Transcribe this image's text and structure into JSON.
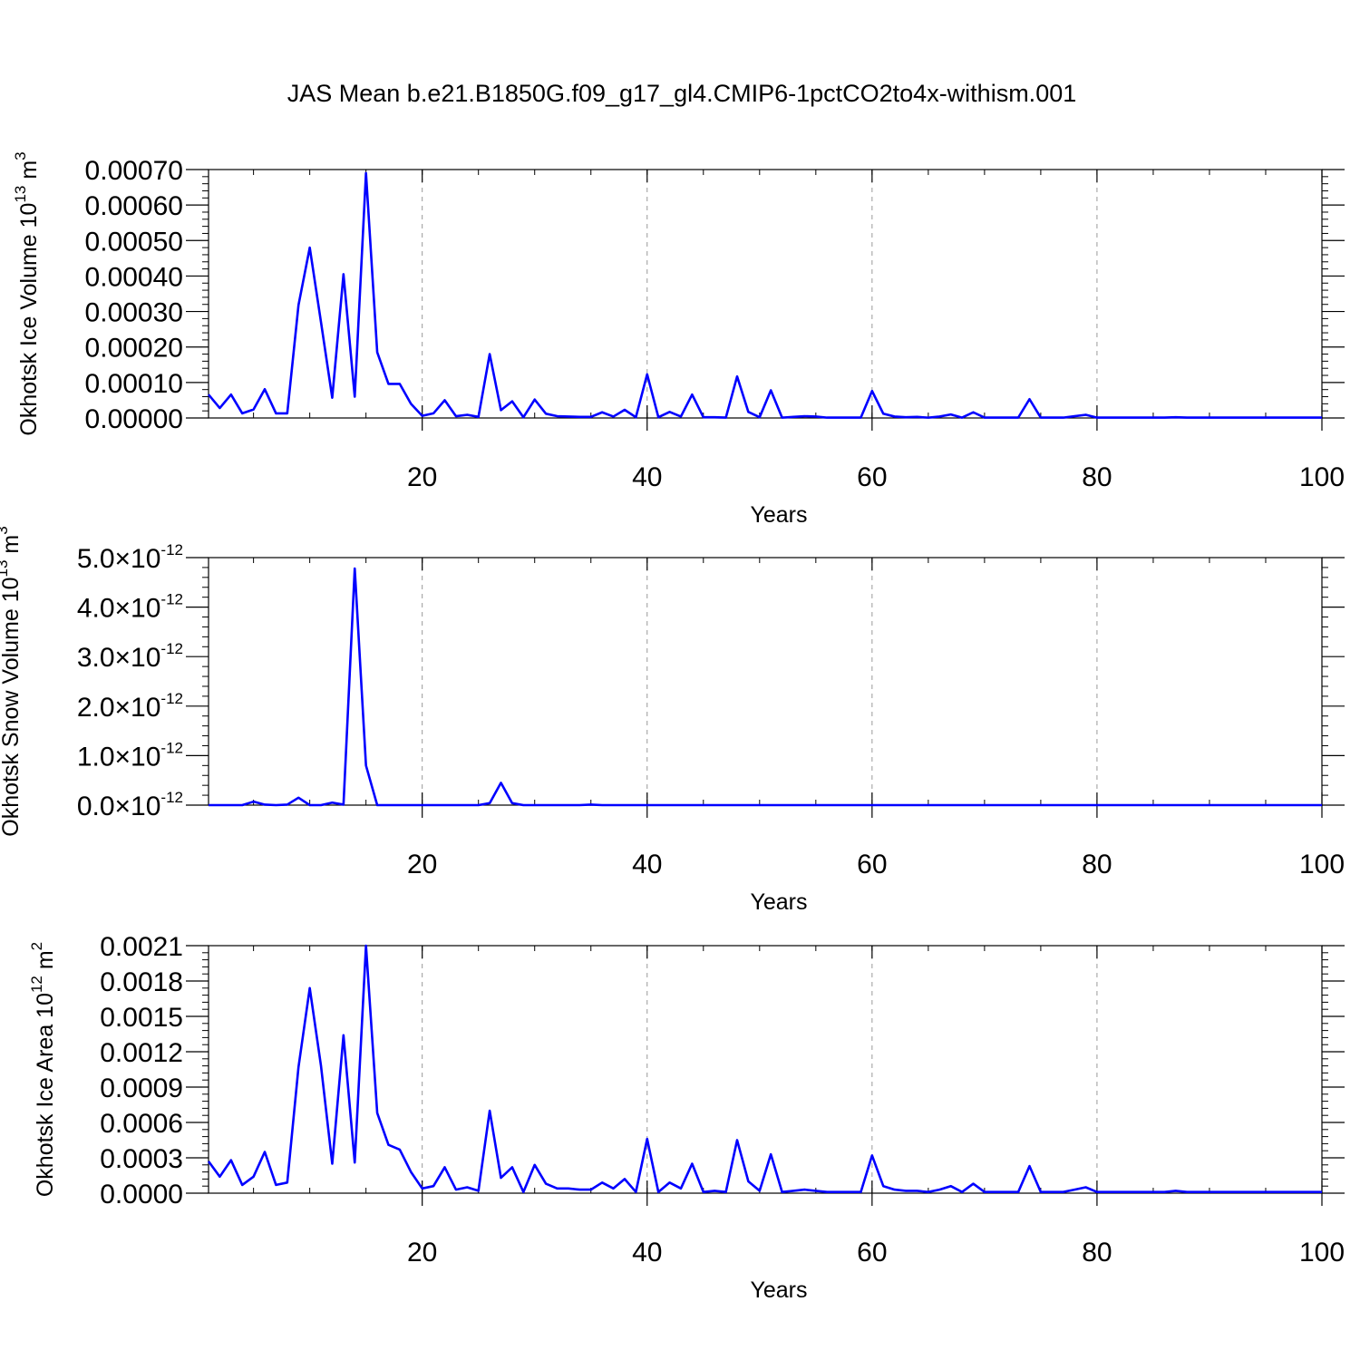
{
  "title": "JAS Mean b.e21.B1850G.f09_g17_gl4.CMIP6-1pctCO2to4x-withism.001",
  "colors": {
    "line": "#0000ff",
    "axis": "#000000",
    "grid": "#999999"
  },
  "chart_data": [
    {
      "type": "line",
      "xlabel": "Years",
      "ylabel": {
        "text": "Okhotsk Ice Volume 10",
        "sup": "13",
        "unit": " m",
        "unit_sup": "3"
      },
      "xlim": [
        1,
        100
      ],
      "ylim": [
        0,
        0.0007
      ],
      "x_ticks": [
        20,
        40,
        60,
        80,
        100
      ],
      "x_tick_labels": [
        "20",
        "40",
        "60",
        "80",
        "100"
      ],
      "y_ticks": [
        0,
        0.0001,
        0.0002,
        0.0003,
        0.0004,
        0.0005,
        0.0006,
        0.0007
      ],
      "y_tick_labels": [
        "0.00000",
        "0.00010",
        "0.00020",
        "0.00030",
        "0.00040",
        "0.00050",
        "0.00060",
        "0.00070"
      ],
      "grid": "dashed vertical at major x ticks",
      "series": [
        {
          "x_start": 1,
          "values": [
            6.6e-05,
            2.8e-05,
            6.6e-05,
            1.3e-05,
            2.4e-05,
            8.1e-05,
            1.3e-05,
            1.3e-05,
            0.000318,
            0.00048,
            0.00027,
            5.7e-05,
            0.000405,
            6e-05,
            0.00069,
            0.000185,
            9.6e-05,
            9.6e-05,
            4e-05,
            6e-06,
            1.3e-05,
            5e-05,
            5e-06,
            9e-06,
            3e-06,
            0.00018,
            2.2e-05,
            4.7e-05,
            2e-06,
            5.2e-05,
            1.2e-05,
            5e-06,
            4e-06,
            3e-06,
            3e-06,
            1.6e-05,
            4e-06,
            2.3e-05,
            2e-06,
            0.000123,
            2e-06,
            1.7e-05,
            4e-06,
            6.6e-05,
            2e-06,
            2e-06,
            1e-06,
            0.000117,
            1.7e-05,
            2e-06,
            7.8e-05,
            1e-06,
            3e-06,
            5e-06,
            4e-06,
            1e-06,
            1e-06,
            1e-06,
            1e-06,
            7.6e-05,
            1.2e-05,
            4e-06,
            2e-06,
            3e-06,
            1e-06,
            4e-06,
            1e-05,
            1e-06,
            1.6e-05,
            1e-06,
            1e-06,
            1e-06,
            1e-06,
            5.3e-05,
            1e-06,
            1e-06,
            1e-06,
            5e-06,
            9e-06,
            1e-06,
            1e-06,
            1e-06,
            1e-06,
            1e-06,
            1e-06,
            1e-06,
            2e-06,
            1e-06,
            1e-06,
            1e-06,
            1e-06,
            1e-06,
            1e-06,
            1e-06,
            1e-06,
            1e-06,
            1e-06,
            1e-06,
            1e-06,
            1e-06
          ]
        }
      ]
    },
    {
      "type": "line",
      "xlabel": "Years",
      "ylabel": {
        "text": "Okhotsk Snow Volume 10",
        "sup": "13",
        "unit": " m",
        "unit_sup": "3"
      },
      "xlim": [
        1,
        100
      ],
      "ylim": [
        0,
        5e-12
      ],
      "x_ticks": [
        20,
        40,
        60,
        80,
        100
      ],
      "x_tick_labels": [
        "20",
        "40",
        "60",
        "80",
        "100"
      ],
      "y_ticks": [
        0,
        1e-12,
        2e-12,
        3e-12,
        4e-12,
        5e-12
      ],
      "y_tick_labels": [
        {
          "mant": "0.0",
          "times": "×10",
          "exp": "-12"
        },
        {
          "mant": "1.0",
          "times": "×10",
          "exp": "-12"
        },
        {
          "mant": "2.0",
          "times": "×10",
          "exp": "-12"
        },
        {
          "mant": "3.0",
          "times": "×10",
          "exp": "-12"
        },
        {
          "mant": "4.0",
          "times": "×10",
          "exp": "-12"
        },
        {
          "mant": "5.0",
          "times": "×10",
          "exp": "-12"
        }
      ],
      "grid": "dashed vertical at major x ticks",
      "series": [
        {
          "x_start": 1,
          "values": [
            0,
            0,
            0,
            0,
            7e-14,
            1e-14,
            0,
            1e-14,
            1.5e-13,
            0,
            0,
            5e-14,
            1e-14,
            4.78e-12,
            8e-13,
            0,
            0,
            0,
            0,
            0,
            0,
            0,
            0,
            0,
            0,
            4e-14,
            4.5e-13,
            4e-14,
            0,
            0,
            0,
            0,
            0,
            0,
            1e-14,
            0,
            0,
            0,
            0,
            0,
            0,
            0,
            0,
            0,
            0,
            0,
            0,
            0,
            0,
            0,
            0,
            0,
            0,
            0,
            0,
            0,
            0,
            0,
            0,
            0,
            0,
            0,
            0,
            0,
            0,
            0,
            0,
            0,
            0,
            0,
            0,
            0,
            0,
            0,
            0,
            0,
            0,
            0,
            0,
            0,
            0,
            0,
            0,
            0,
            0,
            0,
            0,
            0,
            0,
            0,
            0,
            0,
            0,
            0,
            0,
            0,
            0,
            0,
            0,
            0
          ]
        }
      ]
    },
    {
      "type": "line",
      "xlabel": "Years",
      "ylabel": {
        "text": "Okhotsk Ice Area 10",
        "sup": "12",
        "unit": " m",
        "unit_sup": "2"
      },
      "xlim": [
        1,
        100
      ],
      "ylim": [
        0,
        0.0021
      ],
      "x_ticks": [
        20,
        40,
        60,
        80,
        100
      ],
      "x_tick_labels": [
        "20",
        "40",
        "60",
        "80",
        "100"
      ],
      "y_ticks": [
        0,
        0.0003,
        0.0006,
        0.0009,
        0.0012,
        0.0015,
        0.0018,
        0.0021
      ],
      "y_tick_labels": [
        "0.0000",
        "0.0003",
        "0.0006",
        "0.0009",
        "0.0012",
        "0.0015",
        "0.0018",
        "0.0021"
      ],
      "grid": "dashed vertical at major x ticks",
      "series": [
        {
          "x_start": 1,
          "values": [
            0.00027,
            0.00014,
            0.00028,
            7e-05,
            0.00014,
            0.00035,
            7e-05,
            9e-05,
            0.00107,
            0.00174,
            0.00108,
            0.00025,
            0.00134,
            0.00026,
            0.0021,
            0.00068,
            0.00041,
            0.00037,
            0.00018,
            4e-05,
            6e-05,
            0.00022,
            3e-05,
            5e-05,
            2e-05,
            0.0007,
            0.00013,
            0.00022,
            1e-05,
            0.00024,
            8e-05,
            4e-05,
            4e-05,
            3e-05,
            3e-05,
            9e-05,
            4e-05,
            0.00012,
            1e-05,
            0.00046,
            1e-05,
            9e-05,
            4e-05,
            0.00025,
            1e-05,
            2e-05,
            1e-05,
            0.00045,
            0.0001,
            2e-05,
            0.00033,
            1e-05,
            2e-05,
            3e-05,
            2e-05,
            1e-05,
            1e-05,
            1e-05,
            1e-05,
            0.00032,
            6e-05,
            3e-05,
            2e-05,
            2e-05,
            1e-05,
            3e-05,
            6e-05,
            1e-05,
            8e-05,
            1e-05,
            1e-05,
            1e-05,
            1e-05,
            0.00023,
            1e-05,
            1e-05,
            1e-05,
            3e-05,
            5e-05,
            1e-05,
            1e-05,
            1e-05,
            1e-05,
            1e-05,
            1e-05,
            1e-05,
            2e-05,
            1e-05,
            1e-05,
            1e-05,
            1e-05,
            1e-05,
            1e-05,
            1e-05,
            1e-05,
            1e-05,
            1e-05,
            1e-05,
            1e-05,
            1e-05
          ]
        }
      ]
    }
  ]
}
